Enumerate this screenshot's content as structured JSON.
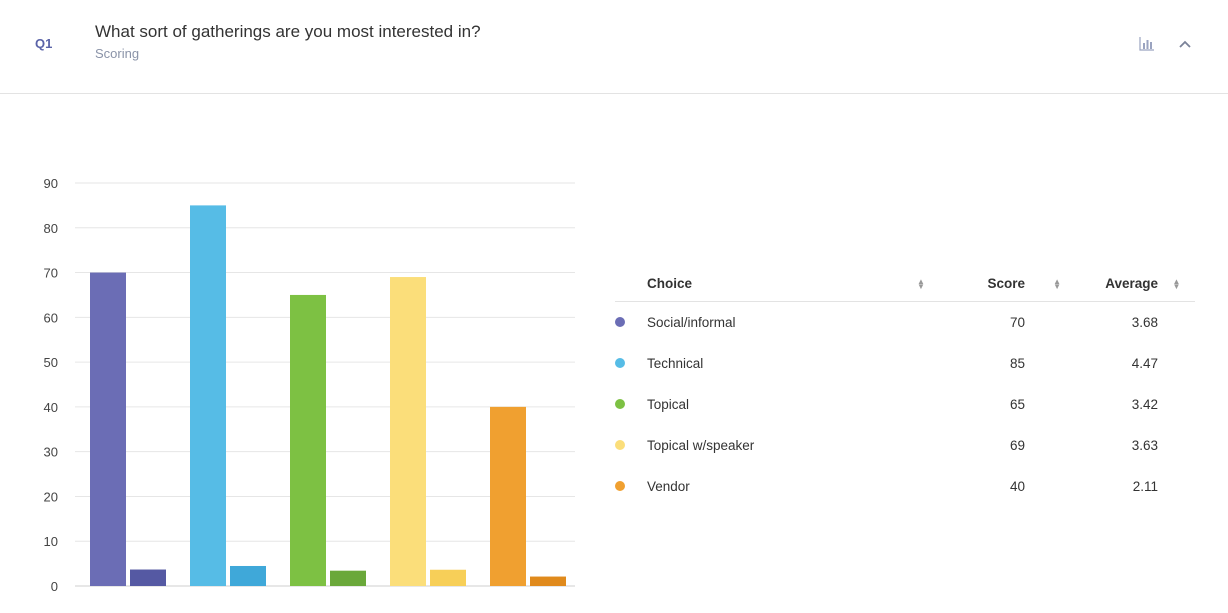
{
  "question": {
    "number": "Q1",
    "title": "What sort of gatherings are you most interested in?",
    "subtitle": "Scoring"
  },
  "icons": {
    "chart_toggle": "bar-chart-icon",
    "collapse": "chevron-up-icon"
  },
  "chart_data": {
    "type": "bar",
    "categories": [
      "Social/informal",
      "Technical",
      "Topical",
      "Topical w/speaker",
      "Vendor"
    ],
    "series": [
      {
        "values": [
          70,
          85,
          65,
          69,
          40
        ]
      },
      {
        "values": [
          3.68,
          4.47,
          3.42,
          3.63,
          2.11
        ]
      }
    ],
    "colors": [
      "#6b6db5",
      "#56bce6",
      "#7dc143",
      "#fbde7a",
      "#f0a030"
    ],
    "secondary_colors": [
      "#5559a3",
      "#3fa8d9",
      "#6aa83a",
      "#f7cf58",
      "#e08a1c"
    ],
    "ylim": [
      0,
      90
    ],
    "yticks": [
      "0",
      "10",
      "20",
      "30",
      "40",
      "50",
      "60",
      "70",
      "80",
      "90"
    ],
    "grid": true,
    "xlabel": "",
    "ylabel": ""
  },
  "table": {
    "headers": {
      "choice": "Choice",
      "score": "Score",
      "average": "Average"
    },
    "rows": [
      {
        "choice": "Social/informal",
        "score": "70",
        "average": "3.68",
        "color": "#6b6db5"
      },
      {
        "choice": "Technical",
        "score": "85",
        "average": "4.47",
        "color": "#56bce6"
      },
      {
        "choice": "Topical",
        "score": "65",
        "average": "3.42",
        "color": "#7dc143"
      },
      {
        "choice": "Topical w/speaker",
        "score": "69",
        "average": "3.63",
        "color": "#fbde7a"
      },
      {
        "choice": "Vendor",
        "score": "40",
        "average": "2.11",
        "color": "#f0a030"
      }
    ]
  }
}
